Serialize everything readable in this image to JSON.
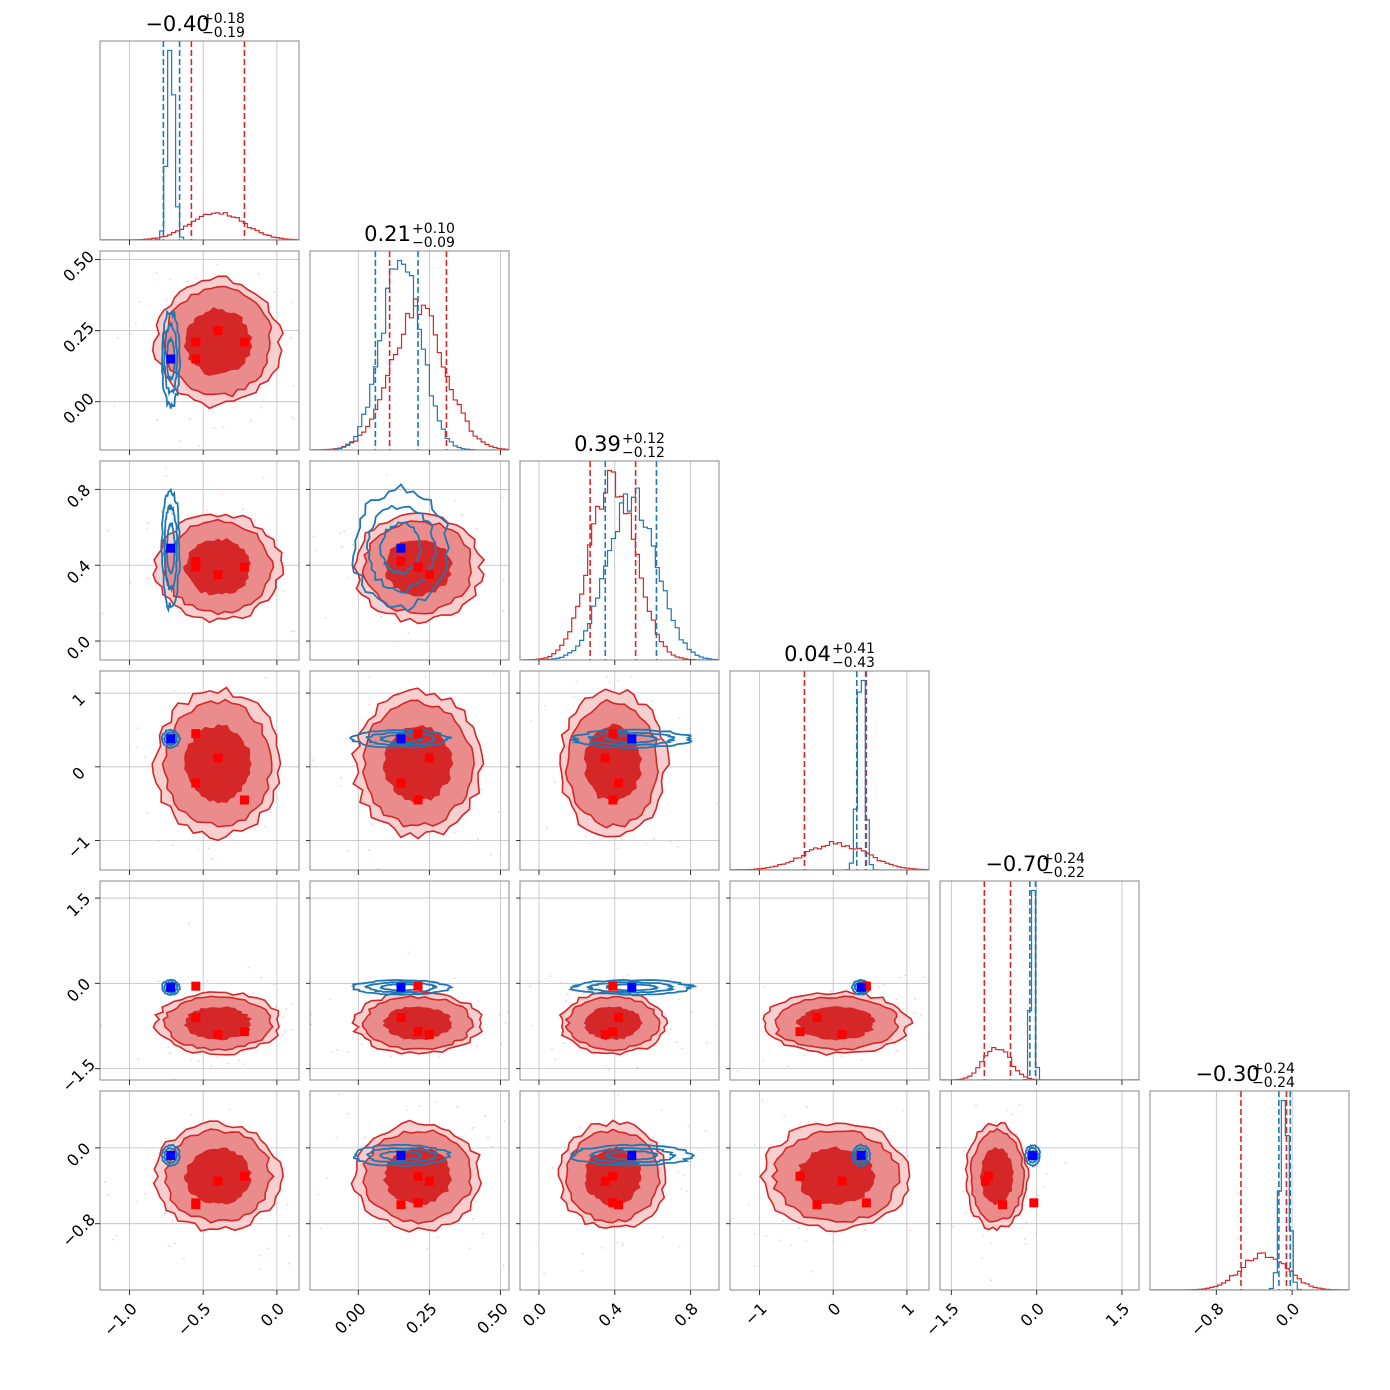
{
  "figure": {
    "kind": "corner-plot"
  },
  "colors": {
    "series_a": "#d62728",
    "series_a_mid": "#ea8c8c",
    "series_a_light": "#f7cfcf",
    "series_b": "#1f77b4",
    "truth_a": "#ff0000",
    "truth_b": "#0000ff",
    "grid": "#bdbdbd",
    "frame": "#888888",
    "text": "#000000"
  },
  "chart_data": {
    "type": "scatter",
    "n_params": 6,
    "titles": [
      {
        "main": "−0.40",
        "sup": "+0.18",
        "sub": "−0.19"
      },
      {
        "main": "0.21",
        "sup": "+0.10",
        "sub": "−0.09"
      },
      {
        "main": "0.39",
        "sup": "+0.12",
        "sub": "−0.12"
      },
      {
        "main": "0.04",
        "sup": "+0.41",
        "sub": "−0.43"
      },
      {
        "main": "−0.70",
        "sup": "+0.24",
        "sub": "−0.22"
      },
      {
        "main": "−0.30",
        "sup": "+0.24",
        "sub": "−0.24"
      }
    ],
    "ranges": [
      [
        -1.2,
        0.15
      ],
      [
        -0.17,
        0.53
      ],
      [
        -0.1,
        0.95
      ],
      [
        -1.4,
        1.3
      ],
      [
        -1.7,
        1.8
      ],
      [
        -1.5,
        0.6
      ]
    ],
    "ticks": [
      [
        -1.0,
        -0.5,
        0.0
      ],
      [
        0.0,
        0.25,
        0.5
      ],
      [
        0.0,
        0.4,
        0.8
      ],
      [
        -1,
        0,
        1
      ],
      [
        -1.5,
        0.0,
        1.5
      ],
      [
        -0.8,
        0.0
      ]
    ],
    "tick_labels": [
      [
        "−1.0",
        "−0.5",
        "0.0"
      ],
      [
        "0.00",
        "0.25",
        "0.50"
      ],
      [
        "0.0",
        "0.4",
        "0.8"
      ],
      [
        "−1",
        "0",
        "1"
      ],
      [
        "−1.5",
        "0.0",
        "1.5"
      ],
      [
        "−0.8",
        "0.0"
      ]
    ],
    "series": [
      {
        "color_key": "series_a",
        "mean": [
          -0.4,
          0.21,
          0.39,
          0.04,
          -0.7,
          -0.3
        ],
        "sigma": [
          0.18,
          0.095,
          0.12,
          0.42,
          0.23,
          0.24
        ],
        "quantile_lines": [
          [
            -0.58,
            -0.22
          ],
          [
            0.11,
            0.31
          ],
          [
            0.27,
            0.51
          ],
          [
            -0.39,
            0.45
          ],
          [
            -0.92,
            -0.46
          ],
          [
            -0.54,
            -0.06
          ]
        ]
      },
      {
        "color_key": "series_b",
        "mean": [
          -0.72,
          0.15,
          0.49,
          0.38,
          -0.07,
          -0.08
        ],
        "sigma": [
          0.025,
          0.07,
          0.13,
          0.05,
          0.035,
          0.045
        ],
        "quantile_lines": [
          [
            -0.77,
            -0.66
          ],
          [
            0.06,
            0.21
          ],
          [
            0.35,
            0.62
          ],
          [
            0.32,
            0.44
          ],
          [
            -0.12,
            -0.02
          ],
          [
            -0.14,
            -0.02
          ]
        ]
      }
    ],
    "truths": [
      {
        "color_key": "truth_a",
        "points": [
          [
            -0.22,
            0.21,
            0.39,
            -0.45,
            -0.85,
            -0.3
          ],
          [
            -0.55,
            0.15,
            0.42,
            -0.22,
            -0.6,
            -0.6
          ],
          [
            -0.4,
            0.25,
            0.35,
            0.12,
            -0.9,
            -0.35
          ],
          [
            -0.55,
            0.21,
            0.39,
            0.45,
            -0.05,
            -0.58
          ]
        ]
      },
      {
        "color_key": "truth_b",
        "points": [
          [
            -0.72,
            0.15,
            0.49,
            0.38,
            -0.07,
            -0.08
          ]
        ]
      }
    ]
  }
}
